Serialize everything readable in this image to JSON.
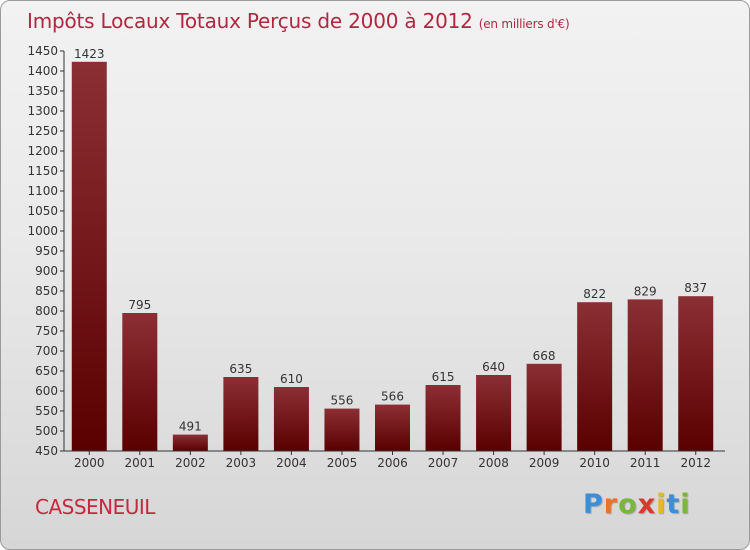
{
  "header": {
    "title": "Impôts Locaux Totaux Perçus de 2000 à 2012",
    "unit": "(en milliers d'€)"
  },
  "footer": {
    "commune": "CASSENEUIL",
    "logo_letters": [
      "P",
      "r",
      "o",
      "x",
      "i",
      "t",
      "i"
    ],
    "logo_colors": [
      "#3a8fd6",
      "#e8732a",
      "#7ab63a",
      "#d63a2a",
      "#e8b62a",
      "#3a8fd6",
      "#7ab63a"
    ]
  },
  "colors": {
    "bar_top": "#8c2f35",
    "bar_bottom": "#5a0000",
    "axis": "#333333",
    "title": "#b3263f"
  },
  "chart_data": {
    "type": "bar",
    "title": "Impôts Locaux Totaux Perçus de 2000 à 2012",
    "subtitle": "(en milliers d'€)",
    "xlabel": "",
    "ylabel": "",
    "categories": [
      "2000",
      "2001",
      "2002",
      "2003",
      "2004",
      "2005",
      "2006",
      "2007",
      "2008",
      "2009",
      "2010",
      "2011",
      "2012"
    ],
    "values": [
      1423,
      795,
      491,
      635,
      610,
      556,
      566,
      615,
      640,
      668,
      822,
      829,
      837
    ],
    "ylim": [
      450,
      1450
    ],
    "ytick_step": 50,
    "yticks": [
      "450",
      "500",
      "550",
      "600",
      "650",
      "700",
      "750",
      "800",
      "850",
      "900",
      "950",
      "1000",
      "1050",
      "1100",
      "1150",
      "1200",
      "1250",
      "1300",
      "1350",
      "1400",
      "1450"
    ],
    "grid": false,
    "legend": "none"
  }
}
